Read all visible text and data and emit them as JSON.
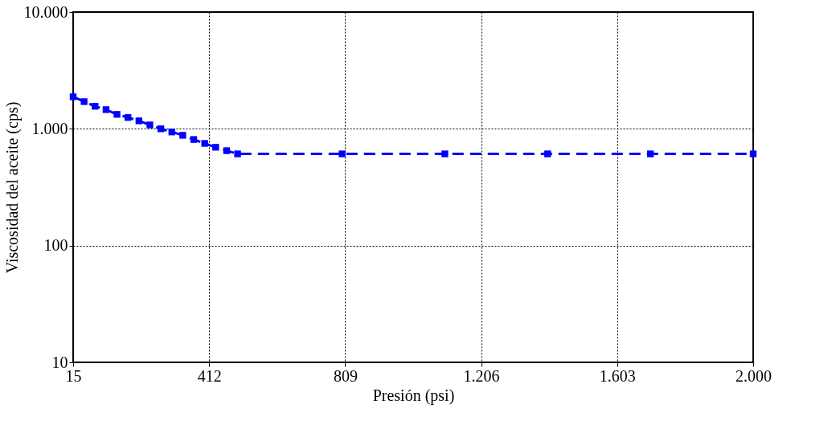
{
  "chart_data": {
    "type": "line",
    "xlabel": "Presión (psi)",
    "ylabel": "Viscosidad del aceite (cps)",
    "x": [
      15,
      47,
      79,
      111,
      143,
      175,
      207,
      239,
      271,
      303,
      335,
      367,
      399,
      431,
      463,
      495,
      800,
      1100,
      1400,
      1700,
      2000
    ],
    "series": [
      {
        "color": "#0000ff",
        "values": [
          1880,
          1710,
          1560,
          1460,
          1330,
          1250,
          1170,
          1080,
          1000,
          940,
          880,
          810,
          750,
          695,
          650,
          610,
          610,
          610,
          610,
          610,
          610
        ]
      }
    ],
    "xlim": [
      15,
      2000
    ],
    "xticks": [
      15,
      412,
      809,
      {
        "value": 1206,
        "label": "1.206"
      },
      {
        "value": 1603,
        "label": "1.603"
      },
      {
        "value": 2000,
        "label": "2.000"
      }
    ],
    "ylim": [
      10,
      10000
    ],
    "log": "y",
    "yticks": [
      10,
      100,
      {
        "value": 1000,
        "label": "1.000"
      },
      {
        "value": 10000,
        "label": "10.000"
      }
    ],
    "grid": true,
    "marker": "square",
    "line_style": "dashed",
    "legend": false
  }
}
